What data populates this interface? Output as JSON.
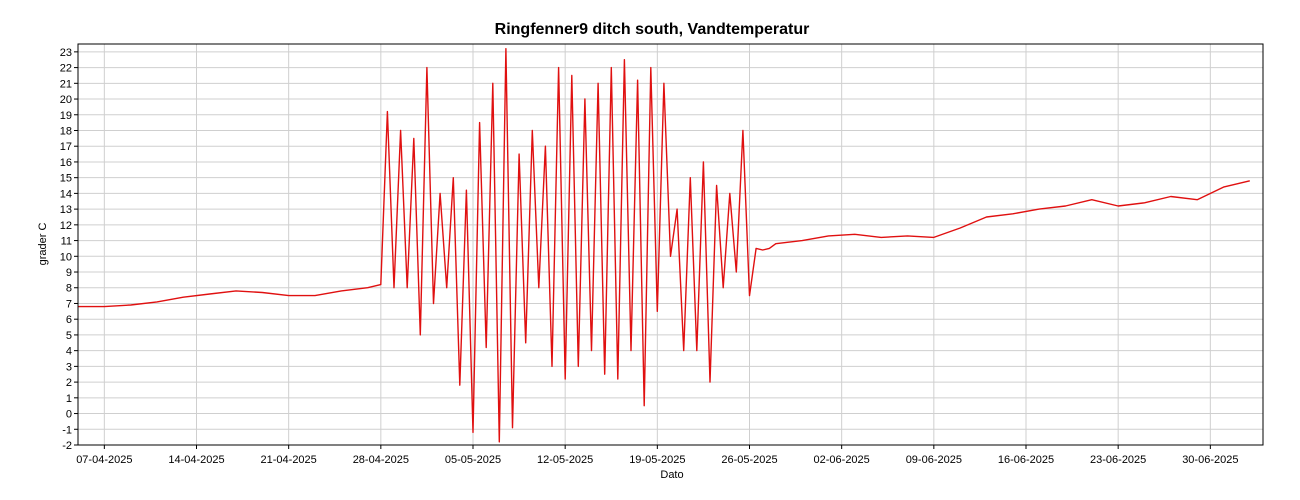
{
  "chart_data": {
    "type": "line",
    "title": "Ringfenner9 ditch south, Vandtemperatur",
    "xlabel": "Dato",
    "ylabel": "grader C",
    "ylim": [
      -2,
      23.5
    ],
    "xlim": [
      "2025-04-05",
      "2025-07-04"
    ],
    "grid": true,
    "line_color": "#e01010",
    "y_ticks": [
      "-2",
      "-1",
      "0",
      "1",
      "2",
      "3",
      "4",
      "5",
      "6",
      "7",
      "8",
      "9",
      "10",
      "11",
      "12",
      "13",
      "14",
      "15",
      "16",
      "17",
      "18",
      "19",
      "20",
      "21",
      "22",
      "23"
    ],
    "x_ticks": [
      "07-04-2025",
      "14-04-2025",
      "21-04-2025",
      "28-04-2025",
      "05-05-2025",
      "12-05-2025",
      "19-05-2025",
      "26-05-2025",
      "02-06-2025",
      "09-06-2025",
      "16-06-2025",
      "23-06-2025",
      "30-06-2025"
    ],
    "series": [
      {
        "x": [
          "2025-04-05",
          "2025-04-07",
          "2025-04-09",
          "2025-04-11",
          "2025-04-13",
          "2025-04-15",
          "2025-04-17",
          "2025-04-19",
          "2025-04-21",
          "2025-04-23",
          "2025-04-25",
          "2025-04-27",
          "2025-04-28",
          "2025-04-28T12",
          "2025-04-29",
          "2025-04-29T12",
          "2025-04-30",
          "2025-04-30T12",
          "2025-05-01",
          "2025-05-01T12",
          "2025-05-02",
          "2025-05-02T12",
          "2025-05-03",
          "2025-05-03T12",
          "2025-05-04",
          "2025-05-04T12",
          "2025-05-05",
          "2025-05-05T12",
          "2025-05-06",
          "2025-05-06T12",
          "2025-05-07",
          "2025-05-07T12",
          "2025-05-08",
          "2025-05-08T12",
          "2025-05-09",
          "2025-05-09T12",
          "2025-05-10",
          "2025-05-10T12",
          "2025-05-11",
          "2025-05-11T12",
          "2025-05-12",
          "2025-05-12T12",
          "2025-05-13",
          "2025-05-13T12",
          "2025-05-14",
          "2025-05-14T12",
          "2025-05-15",
          "2025-05-15T12",
          "2025-05-16",
          "2025-05-16T12",
          "2025-05-17",
          "2025-05-17T12",
          "2025-05-18",
          "2025-05-18T12",
          "2025-05-19",
          "2025-05-19T12",
          "2025-05-20",
          "2025-05-20T12",
          "2025-05-21",
          "2025-05-21T12",
          "2025-05-22",
          "2025-05-22T12",
          "2025-05-23",
          "2025-05-23T12",
          "2025-05-24",
          "2025-05-24T12",
          "2025-05-25",
          "2025-05-25T12",
          "2025-05-26",
          "2025-05-26T12",
          "2025-05-27",
          "2025-05-27T12",
          "2025-05-28",
          "2025-05-30",
          "2025-06-01",
          "2025-06-03",
          "2025-06-05",
          "2025-06-07",
          "2025-06-09",
          "2025-06-11",
          "2025-06-13",
          "2025-06-15",
          "2025-06-17",
          "2025-06-19",
          "2025-06-21",
          "2025-06-23",
          "2025-06-25",
          "2025-06-27",
          "2025-06-29",
          "2025-07-01",
          "2025-07-03"
        ],
        "y": [
          6.8,
          6.8,
          6.9,
          7.1,
          7.4,
          7.6,
          7.8,
          7.7,
          7.5,
          7.5,
          7.8,
          8.0,
          8.2,
          19.2,
          8.0,
          18.0,
          8.0,
          17.5,
          5.0,
          22.0,
          7.0,
          14.0,
          8.0,
          15.0,
          1.8,
          14.2,
          -1.2,
          18.5,
          4.2,
          21.0,
          -1.8,
          23.2,
          -0.9,
          16.5,
          4.5,
          18.0,
          8.0,
          17.0,
          3.0,
          22.0,
          2.2,
          21.5,
          3.0,
          20.0,
          4.0,
          21.0,
          2.5,
          22.0,
          2.2,
          22.5,
          4.0,
          21.2,
          0.5,
          22.0,
          6.5,
          21.0,
          10.0,
          13.0,
          4.0,
          15.0,
          4.0,
          16.0,
          2.0,
          14.5,
          8.0,
          14.0,
          9.0,
          18.0,
          7.5,
          10.5,
          10.4,
          10.5,
          10.8,
          11.0,
          11.3,
          11.4,
          11.2,
          11.3,
          11.2,
          11.8,
          12.5,
          12.7,
          13.0,
          13.2,
          13.6,
          13.2,
          13.4,
          13.8,
          13.6,
          14.4,
          14.8
        ]
      }
    ]
  }
}
